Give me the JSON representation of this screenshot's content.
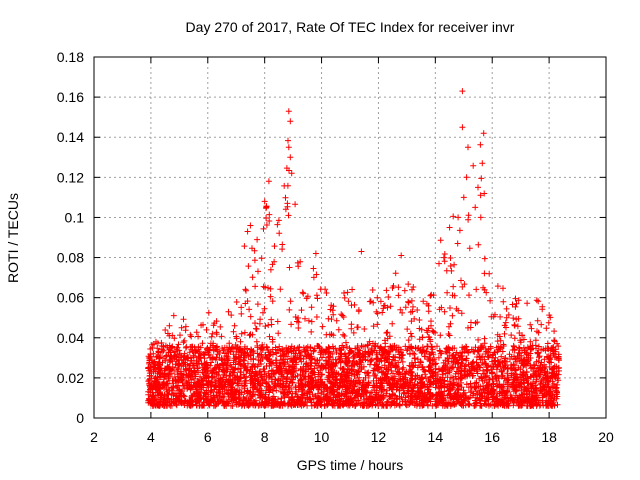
{
  "chart_data": {
    "type": "scatter",
    "title": "Day 270 of 2017, Rate Of TEC Index for receiver invr",
    "xlabel": "GPS time / hours",
    "ylabel": "ROTI / TECUs",
    "xlim": [
      2,
      20
    ],
    "ylim": [
      0,
      0.18
    ],
    "x_ticks": [
      "2",
      "4",
      "6",
      "8",
      "10",
      "12",
      "14",
      "16",
      "18",
      "20"
    ],
    "y_ticks": [
      "0",
      "0.02",
      "0.04",
      "0.06",
      "0.08",
      "0.1",
      "0.12",
      "0.14",
      "0.16",
      "0.18"
    ],
    "grid": true,
    "marker": "+",
    "series_color": "#ff0000",
    "data_x_range": [
      3.9,
      18.35
    ],
    "series": [
      {
        "name": "ROTI",
        "envelope_hours": [
          3.9,
          4.5,
          5.0,
          5.5,
          6.0,
          6.5,
          7.0,
          7.3,
          7.6,
          8.0,
          8.4,
          8.8,
          9.0,
          9.3,
          9.8,
          10.3,
          10.8,
          11.3,
          11.8,
          12.3,
          12.8,
          13.3,
          13.8,
          14.2,
          14.6,
          14.9,
          15.3,
          15.6,
          16.0,
          16.5,
          17.0,
          17.5,
          18.0,
          18.35
        ],
        "envelope_max": [
          0.035,
          0.045,
          0.055,
          0.045,
          0.055,
          0.05,
          0.065,
          0.09,
          0.085,
          0.11,
          0.095,
          0.15,
          0.12,
          0.075,
          0.08,
          0.065,
          0.07,
          0.06,
          0.065,
          0.07,
          0.075,
          0.065,
          0.06,
          0.09,
          0.095,
          0.16,
          0.13,
          0.14,
          0.07,
          0.065,
          0.06,
          0.06,
          0.055,
          0.035
        ],
        "highlight_points": [
          {
            "x": 8.85,
            "y": 0.153
          },
          {
            "x": 8.9,
            "y": 0.148
          },
          {
            "x": 8.85,
            "y": 0.135
          },
          {
            "x": 8.9,
            "y": 0.13
          },
          {
            "x": 8.95,
            "y": 0.122
          },
          {
            "x": 8.15,
            "y": 0.118
          },
          {
            "x": 8.0,
            "y": 0.108
          },
          {
            "x": 8.8,
            "y": 0.107
          },
          {
            "x": 14.95,
            "y": 0.163
          },
          {
            "x": 14.95,
            "y": 0.145
          },
          {
            "x": 15.15,
            "y": 0.135
          },
          {
            "x": 15.7,
            "y": 0.142
          },
          {
            "x": 15.65,
            "y": 0.127
          },
          {
            "x": 15.1,
            "y": 0.12
          },
          {
            "x": 15.5,
            "y": 0.115
          },
          {
            "x": 15.0,
            "y": 0.11
          },
          {
            "x": 15.4,
            "y": 0.105
          },
          {
            "x": 14.8,
            "y": 0.1
          },
          {
            "x": 15.6,
            "y": 0.1
          },
          {
            "x": 14.5,
            "y": 0.095
          },
          {
            "x": 7.5,
            "y": 0.096
          },
          {
            "x": 7.4,
            "y": 0.093
          },
          {
            "x": 11.4,
            "y": 0.083
          },
          {
            "x": 12.8,
            "y": 0.081
          },
          {
            "x": 9.8,
            "y": 0.082
          },
          {
            "x": 14.3,
            "y": 0.08
          }
        ]
      }
    ]
  }
}
